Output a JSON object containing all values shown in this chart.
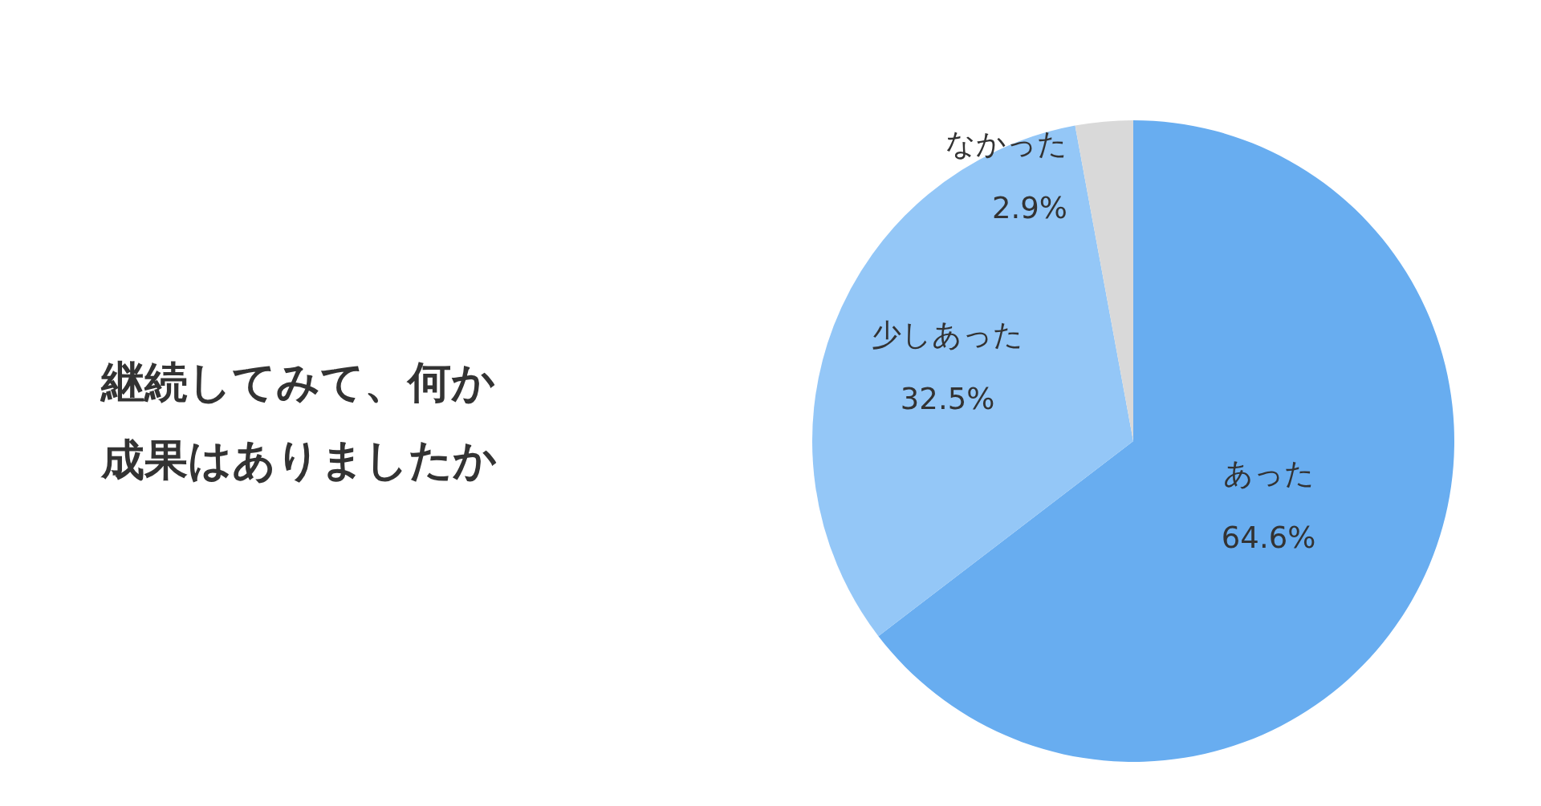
{
  "chart_data": {
    "type": "pie",
    "title": "継続してみて、何か成果はありましたか",
    "categories": [
      "あった",
      "少しあった",
      "なかった"
    ],
    "values": [
      64.6,
      32.5,
      2.9
    ],
    "value_labels": [
      "64.6%",
      "32.5%",
      "2.9%"
    ],
    "colors": [
      "#68adf0",
      "#94c7f7",
      "#d9d9d9"
    ],
    "legend": false
  }
}
